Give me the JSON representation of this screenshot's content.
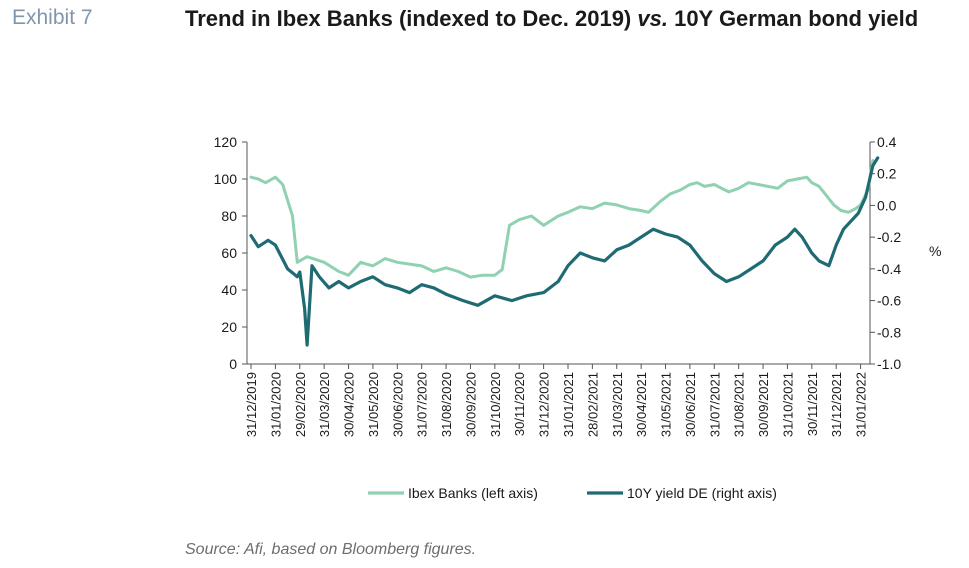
{
  "header": {
    "exhibit": "Exhibit 7",
    "title_a": "Trend in Ibex Banks (indexed to Dec. 2019) ",
    "title_vs": "vs.",
    "title_b": " 10Y German bond yield"
  },
  "source": "Source: Afi, based on Bloomberg figures.",
  "chart_data": {
    "type": "line",
    "title": "Trend in Ibex Banks (indexed to Dec. 2019) vs. 10Y German bond yield",
    "x_labels": [
      "31/12/2019",
      "31/01/2020",
      "29/02/2020",
      "31/03/2020",
      "30/04/2020",
      "31/05/2020",
      "30/06/2020",
      "31/07/2020",
      "31/08/2020",
      "30/09/2020",
      "31/10/2020",
      "30/11/2020",
      "31/12/2020",
      "31/01/2021",
      "28/02/2021",
      "31/03/2021",
      "30/04/2021",
      "31/05/2021",
      "30/06/2021",
      "31/07/2021",
      "31/08/2021",
      "30/09/2021",
      "31/10/2021",
      "30/11/2021",
      "31/12/2021",
      "31/01/2022"
    ],
    "y_left": {
      "min": 0,
      "max": 120,
      "ticks": [
        "0",
        "20",
        "40",
        "60",
        "80",
        "100",
        "120"
      ]
    },
    "y_right": {
      "min": -1.0,
      "max": 0.4,
      "unit_label": "%",
      "ticks": [
        "-1.0",
        "-0.8",
        "-0.6",
        "-0.4",
        "-0.2",
        "0.0",
        "0.2",
        "0.4"
      ]
    },
    "legend_position": "bottom",
    "series": [
      {
        "name": "Ibex Banks (left axis)",
        "axis": "left",
        "color": "#8fd1b1",
        "values": [
          101,
          100,
          98,
          101,
          97,
          80,
          55,
          58,
          55,
          50,
          48,
          55,
          53,
          57,
          55,
          54,
          53,
          50,
          52,
          50,
          47,
          48,
          48,
          51,
          75,
          78,
          80,
          75,
          80,
          82,
          85,
          84,
          87,
          86,
          84,
          83,
          82,
          88,
          92,
          94,
          97,
          98,
          96,
          97,
          95,
          93,
          95,
          98,
          97,
          96,
          95,
          99,
          100,
          101,
          98,
          96,
          91,
          86,
          83,
          82,
          84,
          86,
          94,
          110
        ],
        "x_index": [
          0,
          0.3,
          0.6,
          1.0,
          1.3,
          1.7,
          1.9,
          2.3,
          3.0,
          3.6,
          4.0,
          4.5,
          5.0,
          5.5,
          6.0,
          6.5,
          7.0,
          7.5,
          8.0,
          8.5,
          9.0,
          9.5,
          10.0,
          10.3,
          10.6,
          11.0,
          11.5,
          12.0,
          12.6,
          13.0,
          13.5,
          14.0,
          14.5,
          15.0,
          15.5,
          16.0,
          16.3,
          16.8,
          17.2,
          17.6,
          18.0,
          18.3,
          18.6,
          19.0,
          19.3,
          19.6,
          20.0,
          20.4,
          20.8,
          21.2,
          21.6,
          22.0,
          22.4,
          22.8,
          23.0,
          23.3,
          23.6,
          23.9,
          24.2,
          24.5,
          24.8,
          25.0,
          25.3,
          25.5
        ]
      },
      {
        "name": "10Y yield DE (right axis)",
        "axis": "right",
        "color": "#1f6b73",
        "values": [
          -0.19,
          -0.26,
          -0.22,
          -0.25,
          -0.4,
          -0.45,
          -0.42,
          -0.65,
          -0.88,
          -0.38,
          -0.45,
          -0.52,
          -0.48,
          -0.52,
          -0.48,
          -0.45,
          -0.5,
          -0.52,
          -0.55,
          -0.5,
          -0.52,
          -0.56,
          -0.6,
          -0.63,
          -0.57,
          -0.6,
          -0.57,
          -0.55,
          -0.48,
          -0.38,
          -0.3,
          -0.33,
          -0.35,
          -0.28,
          -0.25,
          -0.2,
          -0.15,
          -0.18,
          -0.2,
          -0.25,
          -0.35,
          -0.43,
          -0.48,
          -0.45,
          -0.4,
          -0.35,
          -0.25,
          -0.2,
          -0.15,
          -0.2,
          -0.3,
          -0.35,
          -0.38,
          -0.25,
          -0.15,
          -0.1,
          -0.05,
          0.05,
          0.25,
          0.3
        ],
        "x_index": [
          0,
          0.3,
          0.7,
          1.0,
          1.5,
          1.9,
          2.0,
          2.2,
          2.3,
          2.5,
          2.8,
          3.2,
          3.6,
          4.0,
          4.5,
          5.0,
          5.5,
          6.0,
          6.5,
          7.0,
          7.5,
          8.0,
          8.7,
          9.3,
          10.0,
          10.7,
          11.3,
          12.0,
          12.6,
          13.0,
          13.5,
          14.0,
          14.5,
          15.0,
          15.5,
          16.0,
          16.5,
          17.0,
          17.5,
          18.0,
          18.5,
          19.0,
          19.5,
          20.0,
          20.5,
          21.0,
          21.5,
          22.0,
          22.3,
          22.6,
          23.0,
          23.3,
          23.7,
          24.0,
          24.3,
          24.6,
          24.9,
          25.2,
          25.5,
          25.7
        ]
      }
    ]
  }
}
